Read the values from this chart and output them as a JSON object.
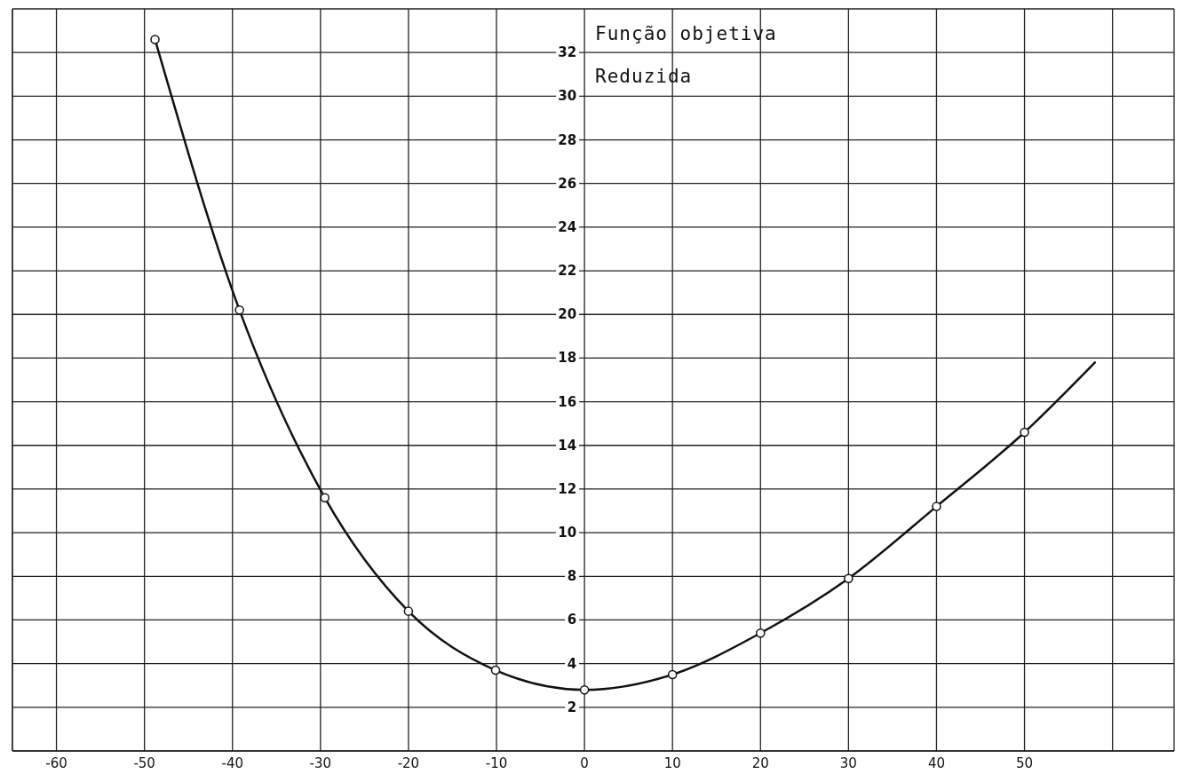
{
  "chart_data": {
    "type": "line",
    "ylabel": "Função objetiva Reduzida",
    "series": [
      {
        "type": "line",
        "color": "#111111",
        "marker": "none",
        "x": [
          -48.8,
          -39.2,
          -29.5,
          -20,
          -10.1,
          0,
          10,
          20,
          30,
          40,
          50,
          58
        ],
        "values": [
          32.6,
          20.2,
          11.6,
          6.4,
          3.7,
          2.8,
          3.5,
          5.4,
          7.9,
          11.2,
          14.6,
          17.8
        ]
      },
      {
        "type": "scatter",
        "color": "#111111",
        "marker": "circle",
        "x": [
          -48.8,
          -39.2,
          -29.5,
          -20,
          -10.1,
          0,
          10,
          20,
          30,
          40,
          50
        ],
        "values": [
          32.6,
          20.2,
          11.6,
          6.4,
          3.7,
          2.8,
          3.5,
          5.4,
          7.9,
          11.2,
          14.6
        ]
      }
    ],
    "xlim": [
      -65,
      67
    ],
    "ylim": [
      0,
      34
    ],
    "xticks": [
      -60,
      -50,
      -40,
      -30,
      -20,
      -10,
      0,
      10,
      20,
      30,
      40,
      50,
      {
        "value": 60,
        "label": null
      }
    ],
    "yticks": [
      2,
      4,
      6,
      8,
      10,
      12,
      14,
      16,
      18,
      20,
      22,
      24,
      26,
      28,
      30,
      32
    ],
    "grid": true
  }
}
